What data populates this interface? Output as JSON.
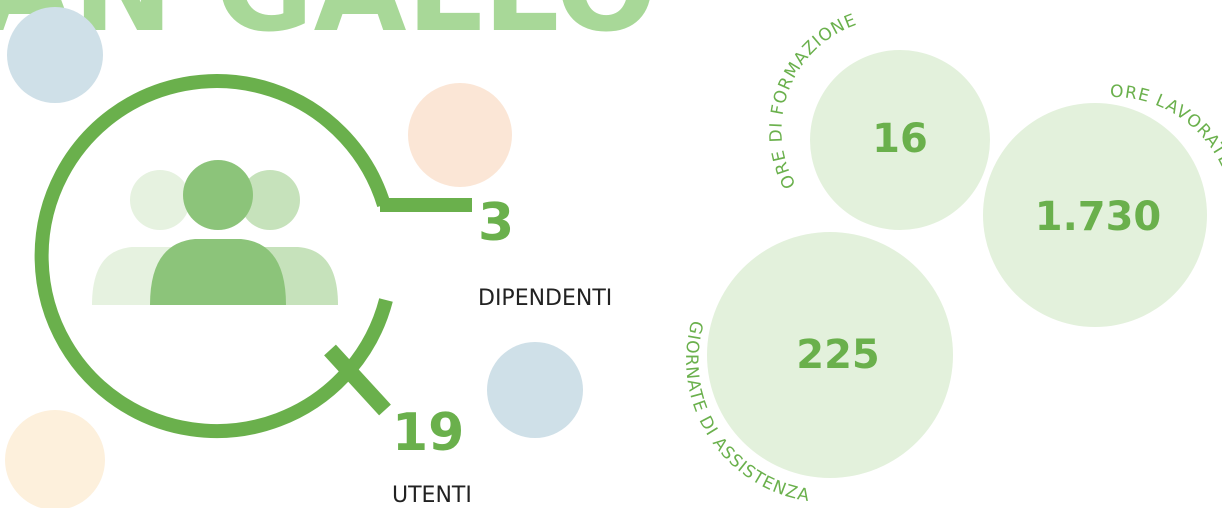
{
  "title": "AN GALLO",
  "people": [
    {
      "number": "3",
      "label": "DIPENDENTI"
    },
    {
      "number": "19",
      "label": "UTENTI"
    }
  ],
  "bubbles": [
    {
      "number": "16",
      "label": "ORE DI FORMAZIONE"
    },
    {
      "number": "1.730",
      "label": "ORE LAVORATE"
    },
    {
      "number": "225",
      "label": "GIORNATE DI ASSISTENZA"
    }
  ]
}
